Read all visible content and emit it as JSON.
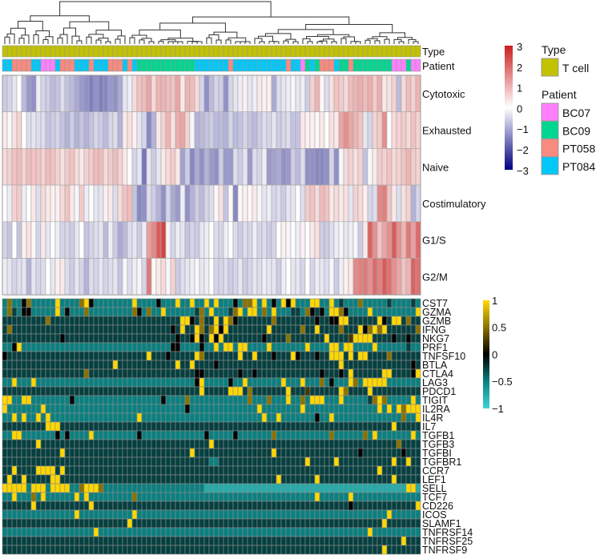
{
  "chart_data": [
    {
      "type": "heatmap",
      "title": "",
      "n_columns": 87,
      "column_annotations": {
        "Type": {
          "label": "Type",
          "values": "T cell for all columns"
        },
        "Patient": {
          "label": "Patient",
          "codes": {
            "C": "PT084",
            "S": "PT058",
            "P": "BC07",
            "G": "BC09"
          },
          "values": "CCSSSSCCPPPCSSSCCCSCCCSSSCSCGGGGGGGGGGGGCCCCCCCSCCCCCCCCCCCSCCPGCGSSSCGGSGGGGGGGGPPPGPP"
        }
      },
      "rows": [
        "Cytotoxic",
        "Exhausted",
        "Naive",
        "Costimulatory",
        "G1/S",
        "G2/M"
      ],
      "values": [
        [
          -0.6,
          -0.5,
          -0.3,
          0,
          -0.8,
          -1.2,
          -1.3,
          -0.2,
          -0.5,
          -0.6,
          -0.8,
          -0.7,
          -0.4,
          -0.7,
          -0.8,
          -1.0,
          -1.2,
          -1.3,
          -1.5,
          -1.3,
          -1.5,
          -1.4,
          -1.2,
          -1.3,
          -1.0,
          -0.3,
          -0.2,
          0.5,
          0.8,
          0.9,
          1.2,
          0.5,
          1.0,
          1.0,
          0.9,
          0.8,
          1.2,
          0.3,
          1.0,
          0.9,
          0.5,
          -0.5,
          -1.3,
          -0.8,
          -0.5,
          -0.6,
          -1.3,
          -0.5,
          -0.3,
          -0.2,
          0.2,
          -0.3,
          -0.2,
          0.3,
          0.2,
          0.2,
          -1.0,
          -0.4,
          -0.3,
          -0.2,
          -0.1,
          -0.3,
          -0.2,
          -0.6,
          0.6,
          1.0,
          0.1,
          -0.4,
          0.4,
          0.8,
          0.7,
          0.5,
          0.9,
          1.0,
          1.1,
          0.9,
          1.1,
          0.7,
          1.1,
          0.3,
          0.4,
          0.6,
          -0.8,
          0.5,
          0.9,
          0.6,
          1.0
        ],
        [
          0.3,
          0.1,
          0.4,
          0.6,
          0,
          -0.4,
          -0.3,
          -0.4,
          -0.4,
          -0.7,
          -0.6,
          -0.5,
          -0.7,
          -0.9,
          -0.6,
          -0.9,
          -0.7,
          -0.9,
          -0.7,
          -0.5,
          -0.6,
          -0.8,
          -0.5,
          -0.4,
          -0.9,
          0.3,
          0.4,
          0.2,
          -0.3,
          -0.5,
          -1.4,
          -0.9,
          0.3,
          0.6,
          1.0,
          0.4,
          1.1,
          1.2,
          0.6,
          -0.1,
          -0.9,
          -0.8,
          -0.7,
          -0.6,
          -0.8,
          -0.8,
          -0.9,
          -0.5,
          -0.8,
          -0.7,
          -0.5,
          -0.7,
          -0.8,
          -0.6,
          -0.4,
          -0.5,
          -0.3,
          -0.6,
          -0.5,
          -0.4,
          -0.7,
          -0.7,
          0.3,
          0.2,
          0.2,
          0.1,
          0.3,
          0,
          0.4,
          0.3,
          1.2,
          1.5,
          1.2,
          1.0,
          0.8,
          -0.3,
          -0.5,
          0.6,
          0.7,
          1.5,
          0,
          0.5,
          0.6,
          0.7,
          0.5,
          0.8,
          0.6
        ],
        [
          0.5,
          0.6,
          0.8,
          0.9,
          0.6,
          0.9,
          0.8,
          0.8,
          0.6,
          0.9,
          0.8,
          0.6,
          0.4,
          0.7,
          0.8,
          0.5,
          0.3,
          0.6,
          0.7,
          0.9,
          0.9,
          0.5,
          0.7,
          0.9,
          0.6,
          0.3,
          0,
          -0.5,
          -0.3,
          -1.6,
          -0.3,
          -0.6,
          -0.3,
          0.3,
          0.5,
          0.7,
          0.3,
          -1.1,
          -0.6,
          -1.4,
          -1.0,
          -1.3,
          -0.9,
          -1.2,
          -1.3,
          -0.6,
          -1.2,
          -1.2,
          -0.4,
          -0.6,
          -0.3,
          -1.2,
          -0.4,
          -0.5,
          -0.2,
          -1.2,
          -1.1,
          -1.0,
          -1.3,
          -1.2,
          -0.6,
          -0.8,
          -0.4,
          -1.3,
          -1.3,
          -1.4,
          -1.4,
          -1.3,
          -0.5,
          -1.3,
          -0.1,
          0.5,
          0.6,
          0.4,
          0.6,
          -0.7,
          0.1,
          0.3,
          0.7,
          0.6,
          0.8,
          0.5,
          0.6,
          0.8,
          1.0,
          0.7,
          0.6
        ],
        [
          0,
          -0.2,
          0.6,
          0.7,
          -0.2,
          0,
          0.3,
          -0.4,
          0.5,
          0.3,
          0.2,
          0.2,
          0.5,
          0.8,
          0.3,
          -0.1,
          0.7,
          -0.2,
          0,
          -0.3,
          -0.3,
          0.2,
          0.3,
          -0.4,
          0.5,
          0.8,
          0.9,
          -0.7,
          -1.4,
          -1.3,
          -0.4,
          -0.6,
          -0.9,
          -1.3,
          -0.5,
          -1.0,
          -1.2,
          -0.2,
          -1.3,
          -0.9,
          -0.6,
          -0.8,
          -0.5,
          -0.4,
          0.1,
          0.4,
          -0.7,
          0.1,
          -1.4,
          0.1,
          0.2,
          0.1,
          0.3,
          -0.1,
          -0.3,
          -0.2,
          -0.5,
          -0.4,
          -0.6,
          -0.3,
          -0.3,
          0,
          -0.4,
          0.7,
          0.8,
          0.5,
          0.9,
          0.8,
          0.3,
          0.5,
          0.3,
          0.4,
          -0.3,
          0.6,
          0.5,
          0.2,
          -0.5,
          -0.4,
          1.6,
          1.7,
          0.8,
          0.3,
          -0.4,
          0.4,
          0.6,
          -0.9,
          -0.5
        ],
        [
          -0.5,
          -0.7,
          0,
          -0.7,
          0.2,
          0.4,
          0.1,
          -0.5,
          0.3,
          -0.3,
          0,
          -0.2,
          -0.5,
          -0.5,
          -0.6,
          -0.3,
          0,
          -0.7,
          -0.5,
          -0.4,
          -0.3,
          -0.8,
          -0.2,
          -0.6,
          -1.0,
          -0.8,
          -0.4,
          -0.3,
          -0.6,
          -0.2,
          1.3,
          1.6,
          2.2,
          2.5,
          -0.1,
          -0.5,
          -0.2,
          -0.3,
          -0.7,
          -0.5,
          -0.6,
          -0.3,
          -0.2,
          0,
          -0.4,
          -0.5,
          -0.2,
          0,
          -0.4,
          -0.6,
          -0.4,
          -0.5,
          -0.2,
          -0.5,
          -0.4,
          -0.6,
          -0.5,
          0,
          0.2,
          -0.1,
          0,
          -0.2,
          0.2,
          0,
          0.3,
          0.4,
          -0.6,
          -0.6,
          -0.4,
          -0.2,
          -0.1,
          -0.3,
          -0.2,
          -0.1,
          -0.6,
          0.3,
          2.1,
          1.5,
          0.8,
          1.2,
          1.5,
          2.2,
          1.5,
          1.0,
          1.8,
          1.3,
          2.0
        ],
        [
          -0.2,
          -0.3,
          -0.5,
          -0.4,
          -0.3,
          -0.9,
          -0.3,
          -0.5,
          -0.4,
          0,
          -0.3,
          0.2,
          0.3,
          -0.4,
          -0.6,
          -0.3,
          -0.5,
          -0.9,
          -0.4,
          -0.5,
          -0.3,
          -0.5,
          -0.4,
          -0.3,
          -0.7,
          -0.1,
          -0.4,
          -0.2,
          -0.1,
          -0.5,
          1.8,
          0.1,
          0.3,
          0.5,
          -0.1,
          0.6,
          -0.6,
          -0.4,
          -0.3,
          -0.2,
          -0.1,
          -0.3,
          -0.2,
          0,
          -0.5,
          -0.5,
          -0.4,
          -0.6,
          -0.5,
          -0.3,
          -0.6,
          -0.5,
          -0.3,
          -0.4,
          -0.2,
          -0.3,
          -0.3,
          -0.6,
          -0.2,
          0,
          -0.3,
          -0.3,
          -0.5,
          0,
          -0.5,
          -0.2,
          -0.3,
          -0.4,
          -0.1,
          -0.6,
          -0.2,
          0.2,
          0.3,
          1.6,
          1.7,
          1.8,
          1.5,
          2.0,
          1.7,
          2.2,
          1.9,
          1.5,
          1.2,
          0.8,
          1.0,
          2.1,
          1.9
        ]
      ],
      "color_scale": {
        "min": -3,
        "max": 3,
        "ticks": [
          "3",
          "2",
          "1",
          "0",
          "−1",
          "−2",
          "−3"
        ],
        "low": "#00007f",
        "mid": "#ffffff",
        "high": "#cc1f1f"
      },
      "dendrogram": "column clustering (top)"
    },
    {
      "type": "heatmap",
      "rows": [
        "CST7",
        "GZMA",
        "GZMB",
        "IFNG",
        "NKG7",
        "PRF1",
        "TNFSF10",
        "BTLA",
        "CTLA4",
        "LAG3",
        "PDCD1",
        "TIGIT",
        "IL2RA",
        "IL4R",
        "IL7",
        "TGFB1",
        "TGFB3",
        "TGFBI",
        "TGFBR1",
        "CCR7",
        "LEF1",
        "SELL",
        "TCF7",
        "CD226",
        "ICOS",
        "SLAMF1",
        "TNFRSF14",
        "TNFRSF25",
        "TNFRSF9"
      ],
      "value_encoding": "digit d -> value d/4 - 1",
      "values": [
        "262246222228222268422222222822224222822822828222426682824284822288228232226222223222232",
        "263244222228242226222222222642622822222236282223682882628222332643428864222282222222228",
        "333333333633333333333333333333333333388436338386433333336333333334334488333333843883633",
        "363333333333333333333333333333333334383386368483333333383333336338333363338468683333336",
        "333333333333433333333333333333333333433484384833333333433336333333383333588883333433433",
        "224822222222222222222222222222222224422224228288288222282222222822228828822228222222322",
        "433333333333333333333333333333833343333386333333383383334333843334338883838833336333333",
        "333333333333333333333338333333333333833833334333333333333333333333333383333333333333343",
        "333333333333333336333333333333333333333344333333343343333333333333433343833333388333348",
        "228222822222222222222222222222222222222248222224228222222282228222624222862888882222222",
        "333333333333333333333333333333333333333338333338883633333338333533333386333383333333333",
        "882288222222224222222222222222222422226222222222222622262228226288822282222236862222282",
        "822222228222222222222222222222222222224222222222222228222222228222222222222222828286888",
        "228282282822222222222222222282222222222222222222222222822822222224228222222222222226228",
        "333333333888333333333333333333333333333333333333333333333333333333333333333333333833333",
        "228822222224242222822222222242222222222222422222422222226222222222226222222628222222282",
        "333333383333333333333333333333333333333333383333333333333333333333333333333333333363333",
        "333333333333833333333333333333333333333833333333333333338333333333333333334333333334333",
        "333333333333333333333333333333333333333333322333333333333333333833333833333333333833833",
        "338333388883833333333333333333333333333333333333333333333333333333333333333333833333333",
        "383383333388333333333333333333333333333333333333333333333833333338333333333333333833333",
        "888882888288882268886222222222222222222222111111111111111111111111111111111111111111881",
        "228222628222222828222222222622222222222222222222222222222222222228222222822222222222222",
        "333333833333333333833333333333333333333333333333333333333333333333333333433333333333338",
        "222222222222222822222222222822222222222222222222222222222222222222222222222222228222222",
        "333333333333333333333333338333333333333333333333333333333333333333333333333333383333333",
        "222222222222222222282222222222222222222222222222222222222222222222222222222282222222222",
        "333333333333333333333333333333333333333333333333333333333333333333333333333333333338333",
        "333333333333333333333333333333333333333333333333333333333333333333333333333333383333333"
      ],
      "color_scale": {
        "min": -1,
        "max": 1,
        "ticks": [
          "1",
          "0.5",
          "0",
          "−0.5",
          "−1"
        ],
        "low": "#3ed6d6",
        "lowmid": "#0a8080",
        "mid": "#000000",
        "highmid": "#8a7200",
        "high": "#ffd700"
      }
    }
  ],
  "annotation_labels": {
    "type": "Type",
    "patient": "Patient"
  },
  "legend": {
    "type_title": "Type",
    "type_items": [
      {
        "label": "T cell",
        "color": "#c2c200"
      }
    ],
    "patient_title": "Patient",
    "patient_items": [
      {
        "label": "BC07",
        "color": "#ff80ff"
      },
      {
        "label": "BC09",
        "color": "#00d68f"
      },
      {
        "label": "PT058",
        "color": "#f88a7e"
      },
      {
        "label": "PT084",
        "color": "#00c8f8"
      }
    ]
  }
}
